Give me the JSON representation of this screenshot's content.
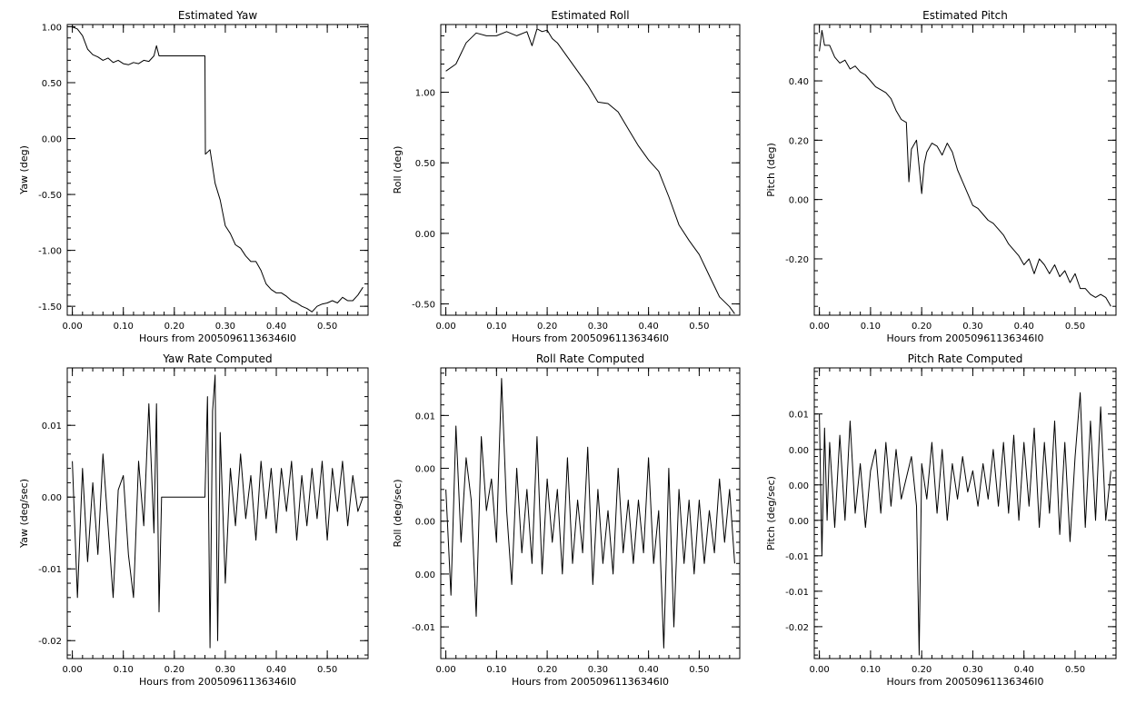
{
  "chart_data": [
    {
      "id": "yaw",
      "type": "line",
      "title": "Estimated Yaw",
      "xlabel": "Hours from 20050961136346I0",
      "ylabel": "Yaw (deg)",
      "xlim": [
        -0.01,
        0.58
      ],
      "ylim": [
        -1.58,
        1.02
      ],
      "xticks": [
        0.0,
        0.1,
        0.2,
        0.3,
        0.4,
        0.5
      ],
      "xtick_labels": [
        "0.00",
        "0.10",
        "0.20",
        "0.30",
        "0.40",
        "0.50"
      ],
      "yticks": [
        -1.5,
        -1.0,
        -0.5,
        0.0,
        0.5,
        1.0
      ],
      "ytick_labels": [
        "-1.50",
        "-1.00",
        "-0.50",
        "0.00",
        "0.50",
        "1.00"
      ],
      "grid": false,
      "series": [
        {
          "x": [
            0.0,
            0.01,
            0.02,
            0.03,
            0.04,
            0.05,
            0.06,
            0.07,
            0.08,
            0.09,
            0.1,
            0.11,
            0.12,
            0.13,
            0.14,
            0.15,
            0.16,
            0.165,
            0.17,
            0.26,
            0.261,
            0.27,
            0.28,
            0.29,
            0.3,
            0.31,
            0.32,
            0.33,
            0.34,
            0.35,
            0.36,
            0.37,
            0.38,
            0.39,
            0.4,
            0.41,
            0.42,
            0.43,
            0.44,
            0.45,
            0.46,
            0.47,
            0.48,
            0.49,
            0.5,
            0.51,
            0.52,
            0.53,
            0.54,
            0.55,
            0.56,
            0.57
          ],
          "y": [
            1.0,
            0.98,
            0.92,
            0.8,
            0.75,
            0.73,
            0.7,
            0.72,
            0.68,
            0.7,
            0.67,
            0.66,
            0.68,
            0.67,
            0.7,
            0.69,
            0.74,
            0.83,
            0.74,
            0.74,
            -0.14,
            -0.1,
            -0.4,
            -0.55,
            -0.78,
            -0.85,
            -0.95,
            -0.98,
            -1.05,
            -1.1,
            -1.1,
            -1.18,
            -1.3,
            -1.35,
            -1.38,
            -1.38,
            -1.41,
            -1.45,
            -1.47,
            -1.5,
            -1.52,
            -1.55,
            -1.5,
            -1.48,
            -1.47,
            -1.45,
            -1.47,
            -1.42,
            -1.45,
            -1.45,
            -1.4,
            -1.33
          ]
        }
      ]
    },
    {
      "id": "roll",
      "type": "line",
      "title": "Estimated Roll",
      "xlabel": "Hours from 20050961136346I0",
      "ylabel": "Roll (deg)",
      "xlim": [
        -0.01,
        0.58
      ],
      "ylim": [
        -0.58,
        1.48
      ],
      "xticks": [
        0.0,
        0.1,
        0.2,
        0.3,
        0.4,
        0.5
      ],
      "xtick_labels": [
        "0.00",
        "0.10",
        "0.20",
        "0.30",
        "0.40",
        "0.50"
      ],
      "yticks": [
        -0.5,
        0.0,
        0.5,
        1.0
      ],
      "ytick_labels": [
        "-0.50",
        "0.00",
        "0.50",
        "1.00"
      ],
      "grid": false,
      "series": [
        {
          "x": [
            0.0,
            0.02,
            0.04,
            0.06,
            0.08,
            0.1,
            0.12,
            0.14,
            0.16,
            0.17,
            0.18,
            0.19,
            0.2,
            0.21,
            0.22,
            0.24,
            0.26,
            0.28,
            0.3,
            0.32,
            0.34,
            0.36,
            0.38,
            0.4,
            0.42,
            0.44,
            0.46,
            0.48,
            0.5,
            0.52,
            0.54,
            0.56,
            0.57
          ],
          "y": [
            1.15,
            1.2,
            1.35,
            1.42,
            1.4,
            1.4,
            1.43,
            1.4,
            1.43,
            1.33,
            1.45,
            1.43,
            1.44,
            1.38,
            1.35,
            1.25,
            1.15,
            1.05,
            0.93,
            0.92,
            0.86,
            0.74,
            0.62,
            0.52,
            0.44,
            0.26,
            0.06,
            -0.05,
            -0.15,
            -0.3,
            -0.45,
            -0.52,
            -0.57
          ]
        }
      ]
    },
    {
      "id": "pitch",
      "type": "line",
      "title": "Estimated Pitch",
      "xlabel": "Hours from 20050961136346I0",
      "ylabel": "Pitch (deg)",
      "xlim": [
        -0.01,
        0.58
      ],
      "ylim": [
        -0.39,
        0.59
      ],
      "xticks": [
        0.0,
        0.1,
        0.2,
        0.3,
        0.4,
        0.5
      ],
      "xtick_labels": [
        "0.00",
        "0.10",
        "0.20",
        "0.30",
        "0.40",
        "0.50"
      ],
      "yticks": [
        -0.2,
        0.0,
        0.2,
        0.4
      ],
      "ytick_labels": [
        "-0.20",
        "0.00",
        "0.20",
        "0.40"
      ],
      "grid": false,
      "series": [
        {
          "x": [
            0.0,
            0.005,
            0.01,
            0.02,
            0.03,
            0.04,
            0.05,
            0.06,
            0.07,
            0.08,
            0.09,
            0.1,
            0.11,
            0.12,
            0.13,
            0.14,
            0.15,
            0.16,
            0.17,
            0.175,
            0.18,
            0.19,
            0.2,
            0.205,
            0.21,
            0.22,
            0.23,
            0.24,
            0.25,
            0.26,
            0.27,
            0.28,
            0.29,
            0.3,
            0.31,
            0.32,
            0.33,
            0.34,
            0.35,
            0.36,
            0.37,
            0.38,
            0.39,
            0.4,
            0.41,
            0.42,
            0.43,
            0.44,
            0.45,
            0.46,
            0.47,
            0.48,
            0.49,
            0.5,
            0.51,
            0.52,
            0.53,
            0.54,
            0.55,
            0.56,
            0.57
          ],
          "y": [
            0.5,
            0.57,
            0.52,
            0.52,
            0.48,
            0.46,
            0.47,
            0.44,
            0.45,
            0.43,
            0.42,
            0.4,
            0.38,
            0.37,
            0.36,
            0.34,
            0.3,
            0.27,
            0.26,
            0.06,
            0.17,
            0.2,
            0.02,
            0.12,
            0.16,
            0.19,
            0.18,
            0.15,
            0.19,
            0.16,
            0.1,
            0.06,
            0.02,
            -0.02,
            -0.03,
            -0.05,
            -0.07,
            -0.08,
            -0.1,
            -0.12,
            -0.15,
            -0.17,
            -0.19,
            -0.22,
            -0.2,
            -0.25,
            -0.2,
            -0.22,
            -0.25,
            -0.22,
            -0.26,
            -0.24,
            -0.28,
            -0.25,
            -0.3,
            -0.3,
            -0.32,
            -0.33,
            -0.32,
            -0.33,
            -0.36
          ]
        }
      ]
    },
    {
      "id": "yaw-rate",
      "type": "line",
      "title": "Yaw Rate Computed",
      "xlabel": "Hours from 20050961136346I0",
      "ylabel": "Yaw (deg/sec)",
      "xlim": [
        -0.01,
        0.58
      ],
      "ylim": [
        -0.0225,
        0.018
      ],
      "xticks": [
        0.0,
        0.1,
        0.2,
        0.3,
        0.4,
        0.5
      ],
      "xtick_labels": [
        "0.00",
        "0.10",
        "0.20",
        "0.30",
        "0.40",
        "0.50"
      ],
      "yticks": [
        -0.02,
        -0.01,
        0.0,
        0.01
      ],
      "ytick_labels": [
        "-0.02",
        "-0.01",
        "0.00",
        "0.01"
      ],
      "grid": false,
      "series": [
        {
          "x": [
            0.0,
            0.01,
            0.02,
            0.03,
            0.04,
            0.05,
            0.06,
            0.07,
            0.08,
            0.09,
            0.1,
            0.11,
            0.12,
            0.13,
            0.14,
            0.15,
            0.16,
            0.165,
            0.17,
            0.175,
            0.26,
            0.265,
            0.27,
            0.275,
            0.28,
            0.285,
            0.29,
            0.3,
            0.31,
            0.32,
            0.33,
            0.34,
            0.35,
            0.36,
            0.37,
            0.38,
            0.39,
            0.4,
            0.41,
            0.42,
            0.43,
            0.44,
            0.45,
            0.46,
            0.47,
            0.48,
            0.49,
            0.5,
            0.51,
            0.52,
            0.53,
            0.54,
            0.55,
            0.56,
            0.57
          ],
          "y": [
            0.005,
            -0.014,
            0.004,
            -0.009,
            0.002,
            -0.008,
            0.006,
            -0.004,
            -0.014,
            0.001,
            0.003,
            -0.008,
            -0.014,
            0.005,
            -0.004,
            0.013,
            -0.005,
            0.013,
            -0.016,
            0.0,
            0.0,
            0.014,
            -0.021,
            0.012,
            0.017,
            -0.02,
            0.009,
            -0.012,
            0.004,
            -0.004,
            0.006,
            -0.003,
            0.003,
            -0.006,
            0.005,
            -0.003,
            0.004,
            -0.005,
            0.004,
            -0.002,
            0.005,
            -0.006,
            0.003,
            -0.004,
            0.004,
            -0.003,
            0.005,
            -0.006,
            0.004,
            -0.002,
            0.005,
            -0.004,
            0.003,
            -0.002,
            0.0
          ]
        }
      ]
    },
    {
      "id": "roll-rate",
      "type": "line",
      "title": "Roll Rate Computed",
      "xlabel": "Hours from 20050961136346I0",
      "ylabel": "Roll (deg/sec)",
      "xlim": [
        -0.01,
        0.58
      ],
      "ylim": [
        -0.013,
        0.0145
      ],
      "xticks": [
        0.0,
        0.1,
        0.2,
        0.3,
        0.4,
        0.5
      ],
      "xtick_labels": [
        "0.00",
        "0.10",
        "0.20",
        "0.30",
        "0.40",
        "0.50"
      ],
      "yticks": [
        -0.01,
        -0.005,
        0.0,
        0.005,
        0.01
      ],
      "ytick_labels": [
        "-0.01",
        "0.00",
        "0.00",
        "0.00",
        "0.01"
      ],
      "grid": false,
      "series": [
        {
          "x": [
            0.0,
            0.01,
            0.02,
            0.03,
            0.04,
            0.05,
            0.06,
            0.07,
            0.08,
            0.09,
            0.1,
            0.105,
            0.11,
            0.12,
            0.13,
            0.14,
            0.15,
            0.16,
            0.17,
            0.18,
            0.19,
            0.2,
            0.21,
            0.22,
            0.23,
            0.24,
            0.25,
            0.26,
            0.27,
            0.28,
            0.29,
            0.3,
            0.31,
            0.32,
            0.33,
            0.34,
            0.35,
            0.36,
            0.37,
            0.38,
            0.39,
            0.4,
            0.41,
            0.42,
            0.43,
            0.44,
            0.45,
            0.46,
            0.47,
            0.48,
            0.49,
            0.5,
            0.51,
            0.52,
            0.53,
            0.54,
            0.55,
            0.56,
            0.57
          ],
          "y": [
            0.003,
            -0.007,
            0.009,
            -0.002,
            0.006,
            0.002,
            -0.009,
            0.008,
            0.001,
            0.004,
            -0.002,
            0.006,
            0.0135,
            0.001,
            -0.006,
            0.005,
            -0.003,
            0.003,
            -0.004,
            0.008,
            -0.005,
            0.004,
            -0.002,
            0.003,
            -0.005,
            0.006,
            -0.004,
            0.002,
            -0.003,
            0.007,
            -0.006,
            0.003,
            -0.004,
            0.001,
            -0.005,
            0.005,
            -0.003,
            0.002,
            -0.004,
            0.002,
            -0.003,
            0.006,
            -0.004,
            0.001,
            -0.012,
            0.005,
            -0.01,
            0.003,
            -0.004,
            0.002,
            -0.005,
            0.002,
            -0.004,
            0.001,
            -0.003,
            0.004,
            -0.002,
            0.003,
            -0.004
          ]
        }
      ]
    },
    {
      "id": "pitch-rate",
      "type": "line",
      "title": "Pitch Rate Computed",
      "xlabel": "Hours from 20050961136346I0",
      "ylabel": "Pitch (deg/sec)",
      "xlim": [
        -0.01,
        0.58
      ],
      "ylim": [
        -0.0245,
        0.0165
      ],
      "xticks": [
        0.0,
        0.1,
        0.2,
        0.3,
        0.4,
        0.5
      ],
      "xtick_labels": [
        "0.00",
        "0.10",
        "0.20",
        "0.30",
        "0.40",
        "0.50"
      ],
      "yticks": [
        -0.02,
        -0.015,
        -0.01,
        -0.005,
        0.0,
        0.005,
        0.01
      ],
      "ytick_labels": [
        "-0.02",
        "-0.01",
        "-0.01",
        "0.00",
        "0.00",
        "0.00",
        "0.01"
      ],
      "grid": false,
      "series": [
        {
          "x": [
            0.0,
            0.005,
            0.01,
            0.015,
            0.02,
            0.03,
            0.04,
            0.05,
            0.06,
            0.07,
            0.08,
            0.09,
            0.1,
            0.11,
            0.12,
            0.13,
            0.14,
            0.15,
            0.16,
            0.17,
            0.18,
            0.19,
            0.195,
            0.2,
            0.21,
            0.22,
            0.23,
            0.24,
            0.25,
            0.26,
            0.27,
            0.28,
            0.29,
            0.3,
            0.31,
            0.32,
            0.33,
            0.34,
            0.35,
            0.36,
            0.37,
            0.38,
            0.39,
            0.4,
            0.41,
            0.42,
            0.43,
            0.44,
            0.45,
            0.46,
            0.47,
            0.48,
            0.49,
            0.5,
            0.51,
            0.52,
            0.53,
            0.54,
            0.55,
            0.56,
            0.57
          ],
          "y": [
            0.01,
            -0.01,
            0.008,
            -0.005,
            0.006,
            -0.006,
            0.007,
            -0.005,
            0.009,
            -0.004,
            0.003,
            -0.006,
            0.002,
            0.005,
            -0.004,
            0.006,
            -0.003,
            0.005,
            -0.002,
            0.001,
            0.004,
            -0.003,
            -0.024,
            0.003,
            -0.002,
            0.006,
            -0.004,
            0.005,
            -0.005,
            0.003,
            -0.002,
            0.004,
            -0.001,
            0.002,
            -0.003,
            0.003,
            -0.002,
            0.005,
            -0.003,
            0.006,
            -0.004,
            0.007,
            -0.005,
            0.006,
            -0.003,
            0.008,
            -0.006,
            0.006,
            -0.004,
            0.009,
            -0.007,
            0.006,
            -0.008,
            0.004,
            0.013,
            -0.006,
            0.009,
            -0.005,
            0.011,
            -0.005,
            0.002
          ]
        }
      ]
    }
  ]
}
